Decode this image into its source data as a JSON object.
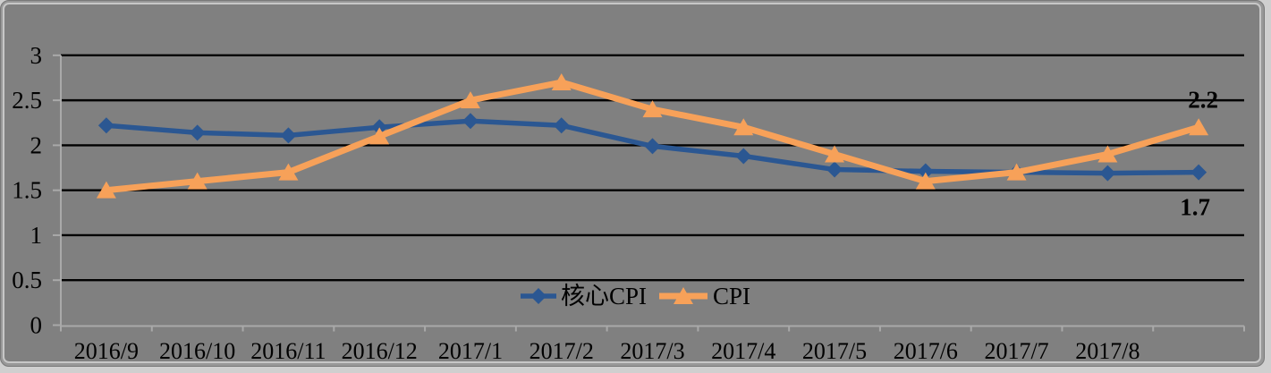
{
  "chart_data": {
    "type": "line",
    "title": "",
    "categories": [
      "2016/9",
      "2016/10",
      "2016/11",
      "2016/12",
      "2017/1",
      "2017/2",
      "2017/3",
      "2017/4",
      "2017/5",
      "2017/6",
      "2017/7",
      "2017/8",
      ""
    ],
    "series": [
      {
        "name": "核心CPI",
        "color": "#2B5792",
        "marker": "diamond",
        "values": [
          2.22,
          2.14,
          2.11,
          2.2,
          2.27,
          2.22,
          1.99,
          1.88,
          1.73,
          1.71,
          1.7,
          1.69,
          1.7
        ],
        "end_label": {
          "text": "1.7",
          "position": "below"
        }
      },
      {
        "name": "CPI",
        "color": "#F7A159",
        "marker": "triangle",
        "values": [
          1.5,
          1.6,
          1.7,
          2.1,
          2.5,
          2.7,
          2.4,
          2.2,
          1.9,
          1.6,
          1.7,
          1.9,
          2.2
        ],
        "end_label": {
          "text": "2.2",
          "position": "above"
        }
      }
    ],
    "y_tick_labels": [
      "3",
      "2.5",
      "2",
      "1.5",
      "1",
      "0.5",
      "0"
    ],
    "ylim": [
      0,
      3
    ],
    "ytick_step": 0.5,
    "grid": true,
    "legend_position": "inside-bottom-center",
    "background_color": "#808080",
    "gridline_color": "#000000",
    "axis_line_color": "#A9A9A9",
    "label_color": "#000000"
  }
}
